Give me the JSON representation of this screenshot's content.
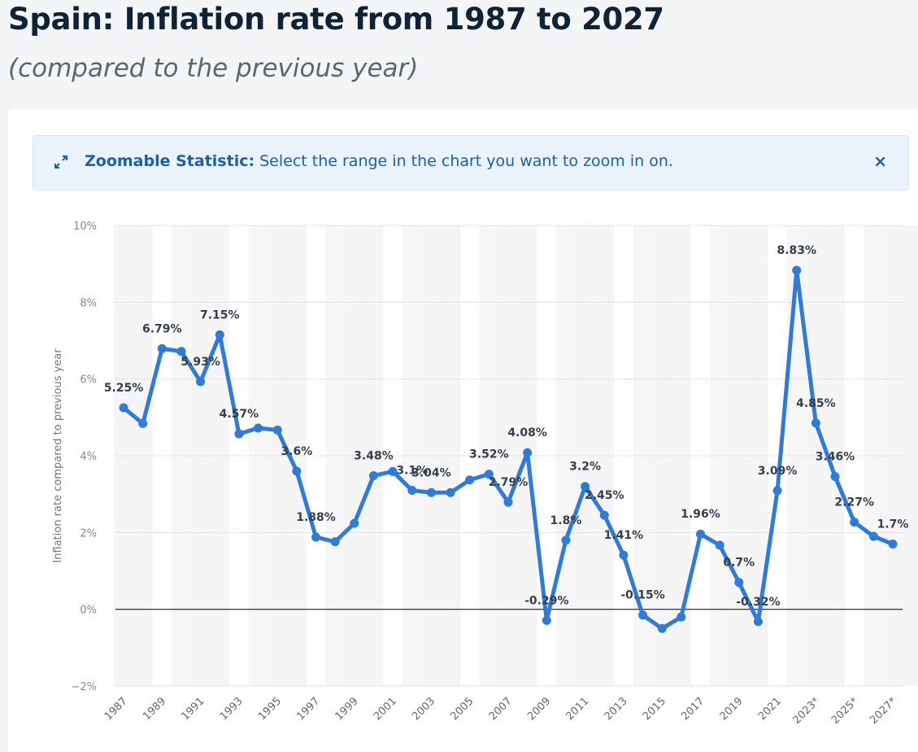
{
  "header": {
    "title": "Spain: Inflation rate from 1987 to 2027",
    "subtitle": "(compared to the previous year)"
  },
  "banner": {
    "icon": "expand-arrows-icon",
    "bold_label": "Zoomable Statistic:",
    "message": "Select the range in the chart you want to zoom in on.",
    "close_label": "×"
  },
  "colors": {
    "line": "#2f7bd9",
    "accent": "#1d5fa8",
    "banner_bg": "#eaf3fb"
  },
  "chart_data": {
    "type": "line",
    "title": "Spain: Inflation rate from 1987 to 2027",
    "subtitle": "(compared to the previous year)",
    "xlabel": "",
    "ylabel": "Inflation rate compared to previous year",
    "ylim": [
      -2,
      10
    ],
    "yticks": [
      -2,
      0,
      2,
      4,
      6,
      8,
      10
    ],
    "ytick_labels": [
      "−2%",
      "0%",
      "2%",
      "4%",
      "6%",
      "8%",
      "10%"
    ],
    "grid": true,
    "x": [
      "1987",
      "1988",
      "1989",
      "1990",
      "1991",
      "1992",
      "1993",
      "1994",
      "1995",
      "1996",
      "1997",
      "1998",
      "1999",
      "2000",
      "2001",
      "2002",
      "2003",
      "2004",
      "2005",
      "2006",
      "2007",
      "2008",
      "2009",
      "2010",
      "2011",
      "2012",
      "2013",
      "2014",
      "2015",
      "2016",
      "2017",
      "2018",
      "2019",
      "2020",
      "2021",
      "2022",
      "2023*",
      "2024*",
      "2025*",
      "2026*",
      "2027*"
    ],
    "xtick_labels": [
      "1987",
      "1989",
      "1991",
      "1993",
      "1995",
      "1997",
      "1999",
      "2001",
      "2003",
      "2005",
      "2007",
      "2009",
      "2011",
      "2013",
      "2015",
      "2017",
      "2019",
      "2021",
      "2023*",
      "2025*",
      "2027*"
    ],
    "series": [
      {
        "name": "Inflation rate",
        "values": [
          5.25,
          4.84,
          6.79,
          6.72,
          5.93,
          7.15,
          4.57,
          4.72,
          4.67,
          3.6,
          1.88,
          1.76,
          2.24,
          3.48,
          3.59,
          3.1,
          3.04,
          3.04,
          3.37,
          3.52,
          2.79,
          4.08,
          -0.29,
          1.8,
          3.2,
          2.45,
          1.41,
          -0.15,
          -0.5,
          -0.2,
          1.96,
          1.67,
          0.7,
          -0.32,
          3.09,
          8.83,
          4.85,
          3.46,
          2.27,
          1.9,
          1.7
        ]
      }
    ],
    "data_labels": [
      {
        "index": 0,
        "text": "5.25%"
      },
      {
        "index": 2,
        "text": "6.79%"
      },
      {
        "index": 4,
        "text": "5.93%"
      },
      {
        "index": 5,
        "text": "7.15%"
      },
      {
        "index": 6,
        "text": "4.57%"
      },
      {
        "index": 9,
        "text": "3.6%"
      },
      {
        "index": 10,
        "text": "1.88%"
      },
      {
        "index": 13,
        "text": "3.48%"
      },
      {
        "index": 15,
        "text": "3.1%"
      },
      {
        "index": 16,
        "text": "3.04%"
      },
      {
        "index": 19,
        "text": "3.52%"
      },
      {
        "index": 20,
        "text": "2.79%"
      },
      {
        "index": 21,
        "text": "4.08%"
      },
      {
        "index": 22,
        "text": "-0.29%"
      },
      {
        "index": 23,
        "text": "1.8%"
      },
      {
        "index": 24,
        "text": "3.2%"
      },
      {
        "index": 25,
        "text": "2.45%"
      },
      {
        "index": 26,
        "text": "1.41%"
      },
      {
        "index": 27,
        "text": "-0.15%"
      },
      {
        "index": 30,
        "text": "1.96%"
      },
      {
        "index": 32,
        "text": "0.7%"
      },
      {
        "index": 33,
        "text": "-0.32%"
      },
      {
        "index": 34,
        "text": "3.09%"
      },
      {
        "index": 35,
        "text": "8.83%"
      },
      {
        "index": 36,
        "text": "4.85%"
      },
      {
        "index": 37,
        "text": "3.46%"
      },
      {
        "index": 38,
        "text": "2.27%"
      },
      {
        "index": 40,
        "text": "1.7%"
      }
    ]
  }
}
